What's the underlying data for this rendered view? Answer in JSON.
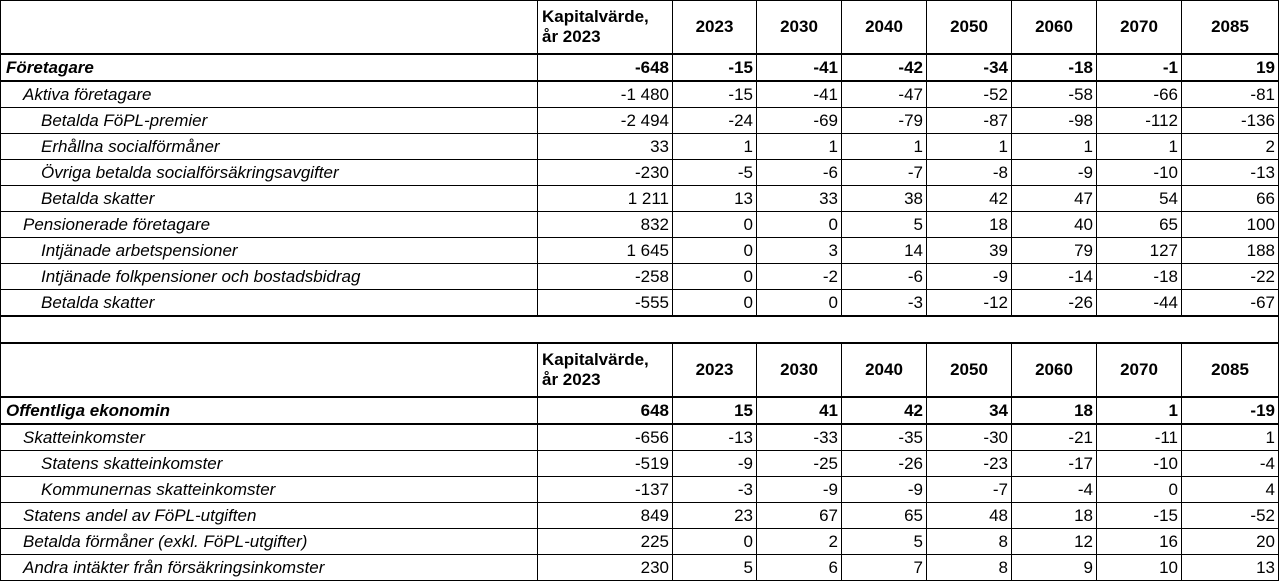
{
  "header": {
    "capital_value": "Kapitalvärde,",
    "capital_value_year": "år 2023",
    "years": [
      "2023",
      "2030",
      "2040",
      "2050",
      "2060",
      "2070",
      "2085"
    ]
  },
  "tables": [
    {
      "rows": [
        {
          "label": "Företagare",
          "level": 0,
          "values": [
            "-648",
            "-15",
            "-41",
            "-42",
            "-34",
            "-18",
            "-1",
            "19"
          ]
        },
        {
          "label": "Aktiva företagare",
          "level": 1,
          "values": [
            "-1 480",
            "-15",
            "-41",
            "-47",
            "-52",
            "-58",
            "-66",
            "-81"
          ]
        },
        {
          "label": "Betalda FöPL-premier",
          "level": 2,
          "values": [
            "-2 494",
            "-24",
            "-69",
            "-79",
            "-87",
            "-98",
            "-112",
            "-136"
          ]
        },
        {
          "label": "Erhållna socialförmåner",
          "level": 2,
          "values": [
            "33",
            "1",
            "1",
            "1",
            "1",
            "1",
            "1",
            "2"
          ]
        },
        {
          "label": "Övriga betalda socialförsäkringsavgifter",
          "level": 2,
          "values": [
            "-230",
            "-5",
            "-6",
            "-7",
            "-8",
            "-9",
            "-10",
            "-13"
          ]
        },
        {
          "label": "Betalda skatter",
          "level": 2,
          "values": [
            "1 211",
            "13",
            "33",
            "38",
            "42",
            "47",
            "54",
            "66"
          ]
        },
        {
          "label": "Pensionerade företagare",
          "level": 1,
          "values": [
            "832",
            "0",
            "0",
            "5",
            "18",
            "40",
            "65",
            "100"
          ]
        },
        {
          "label": "Intjänade arbetspensioner",
          "level": 2,
          "values": [
            "1 645",
            "0",
            "3",
            "14",
            "39",
            "79",
            "127",
            "188"
          ]
        },
        {
          "label": "Intjänade folkpensioner och bostadsbidrag",
          "level": 2,
          "values": [
            "-258",
            "0",
            "-2",
            "-6",
            "-9",
            "-14",
            "-18",
            "-22"
          ]
        },
        {
          "label": "Betalda skatter",
          "level": 2,
          "values": [
            "-555",
            "0",
            "0",
            "-3",
            "-12",
            "-26",
            "-44",
            "-67"
          ]
        }
      ]
    },
    {
      "rows": [
        {
          "label": "Offentliga ekonomin",
          "level": 0,
          "values": [
            "648",
            "15",
            "41",
            "42",
            "34",
            "18",
            "1",
            "-19"
          ]
        },
        {
          "label": "Skatteinkomster",
          "level": 1,
          "values": [
            "-656",
            "-13",
            "-33",
            "-35",
            "-30",
            "-21",
            "-11",
            "1"
          ]
        },
        {
          "label": "Statens skatteinkomster",
          "level": 2,
          "values": [
            "-519",
            "-9",
            "-25",
            "-26",
            "-23",
            "-17",
            "-10",
            "-4"
          ]
        },
        {
          "label": "Kommunernas skatteinkomster",
          "level": 2,
          "values": [
            "-137",
            "-3",
            "-9",
            "-9",
            "-7",
            "-4",
            "0",
            "4"
          ]
        },
        {
          "label": "Statens andel av FöPL-utgiften",
          "level": 1,
          "values": [
            "849",
            "23",
            "67",
            "65",
            "48",
            "18",
            "-15",
            "-52"
          ]
        },
        {
          "label": "Betalda förmåner (exkl. FöPL-utgifter)",
          "level": 1,
          "values": [
            "225",
            "0",
            "2",
            "5",
            "8",
            "12",
            "16",
            "20"
          ]
        },
        {
          "label": "Andra intäkter från försäkringsinkomster",
          "level": 1,
          "values": [
            "230",
            "5",
            "6",
            "7",
            "8",
            "9",
            "10",
            "13"
          ]
        }
      ]
    }
  ]
}
